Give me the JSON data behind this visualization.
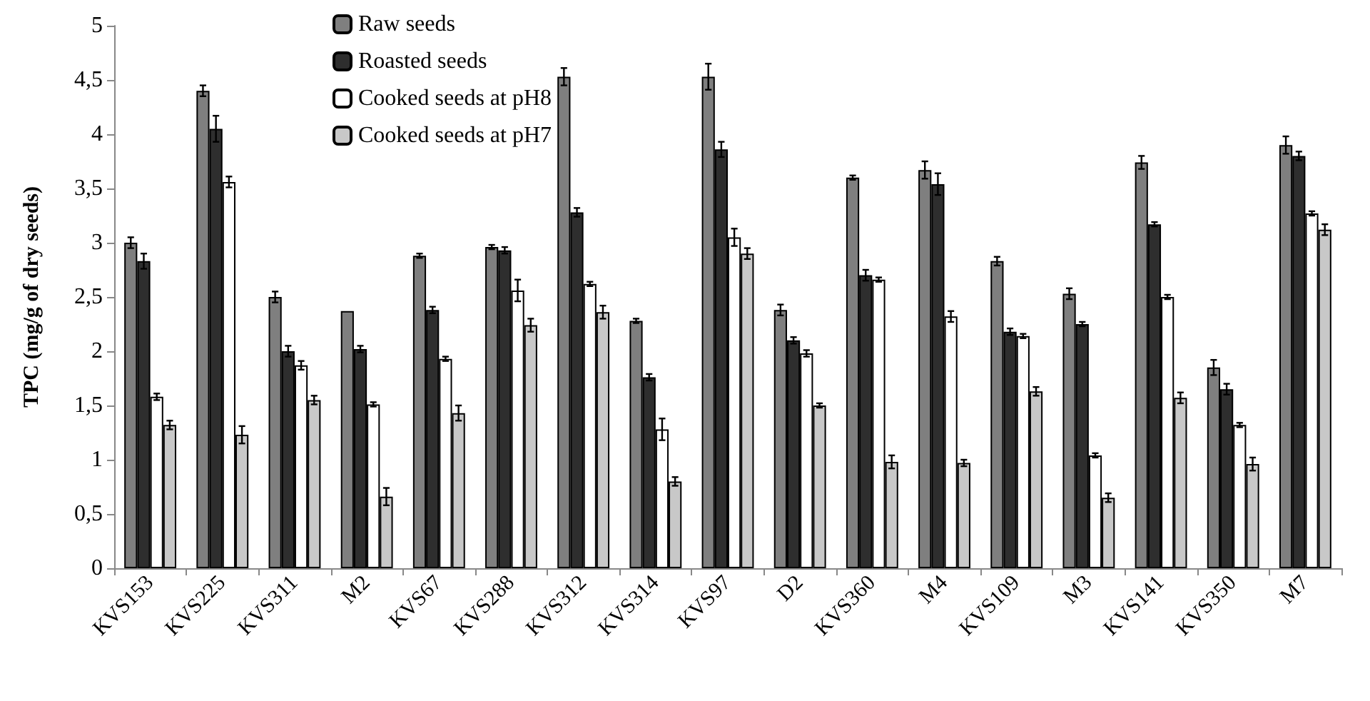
{
  "chart_data": {
    "type": "bar",
    "ylabel": "TPC (mg/g of dry seeds)",
    "categories": [
      "KVS153",
      "KVS225",
      "KVS311",
      "M2",
      "KVS67",
      "KVS288",
      "KVS312",
      "KVS314",
      "KVS97",
      "D2",
      "KVS360",
      "M4",
      "KVS109",
      "M3",
      "KVS141",
      "KVS350",
      "M7"
    ],
    "series": [
      {
        "name": "Raw seeds",
        "color": "#7f7f7f",
        "values": [
          3.0,
          4.4,
          2.5,
          2.37,
          2.88,
          2.96,
          4.53,
          2.28,
          4.53,
          2.38,
          3.6,
          3.67,
          2.83,
          2.53,
          3.74,
          1.85,
          3.9
        ],
        "errors": [
          0.05,
          0.05,
          0.05,
          null,
          0.02,
          0.02,
          0.08,
          0.02,
          0.12,
          0.05,
          0.02,
          0.08,
          0.04,
          0.05,
          0.06,
          0.07,
          0.08
        ]
      },
      {
        "name": "Roasted seeds",
        "color": "#2e2e2e",
        "values": [
          2.83,
          4.05,
          2.0,
          2.02,
          2.38,
          2.93,
          3.28,
          1.76,
          3.86,
          2.1,
          2.7,
          3.54,
          2.18,
          2.25,
          3.17,
          1.65,
          3.8
        ],
        "errors": [
          0.07,
          0.12,
          0.05,
          0.03,
          0.03,
          0.03,
          0.04,
          0.03,
          0.07,
          0.03,
          0.05,
          0.1,
          0.03,
          0.02,
          0.02,
          0.05,
          0.04
        ]
      },
      {
        "name": "Cooked seeds at pH8",
        "color": "#ffffff",
        "values": [
          1.58,
          3.56,
          1.87,
          1.51,
          1.93,
          2.56,
          2.62,
          1.28,
          3.05,
          1.98,
          2.66,
          2.32,
          2.14,
          1.04,
          2.5,
          1.32,
          3.27
        ],
        "errors": [
          0.03,
          0.05,
          0.04,
          0.02,
          0.02,
          0.1,
          0.02,
          0.1,
          0.08,
          0.03,
          0.02,
          0.05,
          0.02,
          0.02,
          0.02,
          0.02,
          0.02
        ]
      },
      {
        "name": "Cooked seeds at pH7",
        "color": "#c8c8c8",
        "values": [
          1.32,
          1.23,
          1.55,
          0.66,
          1.43,
          2.24,
          2.36,
          0.8,
          2.9,
          1.5,
          0.98,
          0.97,
          1.63,
          0.65,
          1.57,
          0.96,
          3.12
        ],
        "errors": [
          0.04,
          0.08,
          0.04,
          0.08,
          0.07,
          0.06,
          0.06,
          0.04,
          0.05,
          0.02,
          0.06,
          0.03,
          0.04,
          0.04,
          0.05,
          0.06,
          0.05
        ]
      }
    ],
    "ylim": [
      0,
      5
    ],
    "yticks": [
      0,
      {
        "value": 0.5,
        "label": "0,5"
      },
      1,
      {
        "value": 1.5,
        "label": "1,5"
      },
      2,
      {
        "value": 2.5,
        "label": "2,5"
      },
      3,
      {
        "value": 3.5,
        "label": "3,5"
      },
      4,
      {
        "value": 4.5,
        "label": "4,5"
      },
      5
    ],
    "grid": false,
    "legend": "top"
  }
}
